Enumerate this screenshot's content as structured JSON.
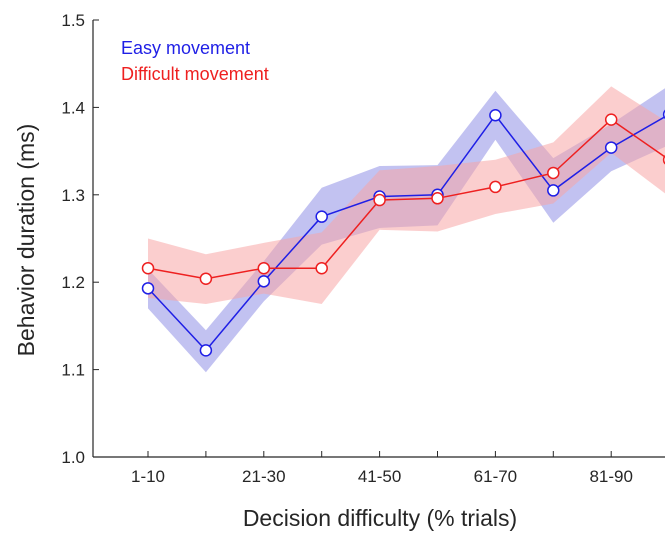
{
  "chart_data": {
    "type": "line",
    "xlabel": "Decision difficulty (% trials)",
    "ylabel": "Behavior duration (ms)",
    "ylim": [
      1.0,
      1.5
    ],
    "yticks": [
      "1.0",
      "1.1",
      "1.2",
      "1.3",
      "1.4",
      "1.5"
    ],
    "ytick_values": [
      1.0,
      1.1,
      1.2,
      1.3,
      1.4,
      1.5
    ],
    "x_positions": [
      1,
      2,
      3,
      4,
      5,
      6,
      7,
      8,
      9,
      10
    ],
    "xticks": [
      "1-10",
      "21-30",
      "41-50",
      "61-70",
      "81-90"
    ],
    "xtick_positions": [
      1,
      3,
      5,
      7,
      9
    ],
    "grid": false,
    "legend_position": "top-left",
    "series": [
      {
        "name": "Easy movement",
        "color": "#1f1fe6",
        "band_color": "#9a9ae8",
        "values": [
          1.193,
          1.122,
          1.201,
          1.275,
          1.298,
          1.3,
          1.391,
          1.305,
          1.354,
          1.392
        ],
        "lower": [
          1.17,
          1.097,
          1.178,
          1.243,
          1.262,
          1.265,
          1.363,
          1.268,
          1.327,
          1.357
        ],
        "upper": [
          1.215,
          1.145,
          1.224,
          1.308,
          1.333,
          1.334,
          1.419,
          1.342,
          1.381,
          1.425
        ]
      },
      {
        "name": "Difficult movement",
        "color": "#ee2020",
        "band_color": "#f7a6a6",
        "values": [
          1.216,
          1.204,
          1.216,
          1.216,
          1.294,
          1.296,
          1.309,
          1.325,
          1.386,
          1.34
        ],
        "lower": [
          1.182,
          1.175,
          1.187,
          1.175,
          1.26,
          1.258,
          1.278,
          1.29,
          1.348,
          1.298
        ],
        "upper": [
          1.25,
          1.232,
          1.245,
          1.257,
          1.328,
          1.333,
          1.34,
          1.36,
          1.424,
          1.382
        ]
      }
    ]
  }
}
